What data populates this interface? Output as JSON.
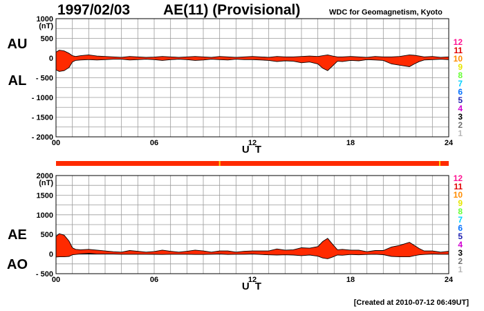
{
  "header": {
    "date": "1997/02/03",
    "title": "AE(11) (Provisional)",
    "source": "WDC for Geomagnetism, Kyoto"
  },
  "footer": {
    "created": "[Created at 2010-07-12 06:49UT]"
  },
  "colors": {
    "fill": "#ff2a00",
    "grid": "#9a9a9a",
    "status_bar": "#ff2a00",
    "status_marker": "#ffcc00"
  },
  "station_legend": [
    {
      "label": "12",
      "color": "#ff1493"
    },
    {
      "label": "11",
      "color": "#e00000"
    },
    {
      "label": "10",
      "color": "#ff8c00"
    },
    {
      "label": "9",
      "color": "#e6e600"
    },
    {
      "label": "8",
      "color": "#66ff33"
    },
    {
      "label": "7",
      "color": "#00d0ff"
    },
    {
      "label": "6",
      "color": "#0070ff"
    },
    {
      "label": "5",
      "color": "#2020b0"
    },
    {
      "label": "4",
      "color": "#d000d0"
    },
    {
      "label": "3",
      "color": "#000000"
    },
    {
      "label": "2",
      "color": "#707070"
    },
    {
      "label": "1",
      "color": "#b8b8b8"
    }
  ],
  "status_bar": {
    "markers_hour": [
      10.0,
      23.45
    ]
  },
  "chart_data": [
    {
      "type": "area",
      "id": "au-al",
      "labels_left": [
        "AU",
        "AL"
      ],
      "unit": "(nT)",
      "xlabel": "U T",
      "xlim": [
        0,
        24
      ],
      "ylim": [
        -2000,
        1000
      ],
      "xticks": [
        0,
        6,
        12,
        18,
        24
      ],
      "xtick_labels": [
        "00",
        "06",
        "12",
        "18",
        "24"
      ],
      "yticks": [
        1000,
        500,
        0,
        -500,
        -1000,
        -1500,
        -2000
      ],
      "ytick_labels": [
        "1000",
        "500",
        "0",
        "- 500",
        "- 1000",
        "- 1500",
        "- 2000"
      ],
      "grid": true,
      "x_hours": [
        0,
        0.2,
        0.5,
        0.8,
        1.0,
        1.2,
        1.5,
        2,
        2.5,
        3,
        3.5,
        4,
        4.5,
        5,
        5.5,
        6,
        6.5,
        7,
        7.5,
        8,
        8.5,
        9,
        9.5,
        10,
        10.5,
        11,
        11.5,
        12,
        12.5,
        13,
        13.5,
        14,
        14.5,
        15,
        15.5,
        16,
        16.3,
        16.6,
        16.9,
        17.2,
        17.5,
        18,
        18.5,
        19,
        19.5,
        20,
        20.5,
        21,
        21.3,
        21.6,
        21.9,
        22.2,
        22.5,
        23,
        23.5,
        24
      ],
      "series": [
        {
          "name": "AU",
          "values": [
            150,
            200,
            180,
            120,
            60,
            40,
            60,
            80,
            50,
            40,
            30,
            20,
            40,
            30,
            20,
            25,
            40,
            30,
            20,
            30,
            40,
            30,
            20,
            40,
            30,
            20,
            30,
            40,
            30,
            20,
            40,
            30,
            30,
            40,
            50,
            40,
            60,
            80,
            50,
            30,
            30,
            40,
            30,
            20,
            40,
            30,
            30,
            40,
            60,
            80,
            70,
            50,
            30,
            40,
            20,
            30
          ]
        },
        {
          "name": "AL",
          "values": [
            -300,
            -340,
            -320,
            -240,
            -100,
            -60,
            -50,
            -40,
            -50,
            -40,
            -30,
            -30,
            -50,
            -40,
            -30,
            -40,
            -60,
            -40,
            -30,
            -40,
            -60,
            -50,
            -30,
            -40,
            -50,
            -30,
            -40,
            -40,
            -50,
            -60,
            -90,
            -70,
            -80,
            -120,
            -100,
            -150,
            -260,
            -320,
            -200,
            -80,
            -90,
            -60,
            -70,
            -40,
            -50,
            -60,
            -150,
            -180,
            -200,
            -220,
            -150,
            -90,
            -50,
            -40,
            -30,
            -40
          ]
        }
      ]
    },
    {
      "type": "area",
      "id": "ae-ao",
      "labels_left": [
        "AE",
        "AO"
      ],
      "unit": "(nT)",
      "xlabel": "U T",
      "xlim": [
        0,
        24
      ],
      "ylim": [
        -500,
        2000
      ],
      "xticks": [
        0,
        6,
        12,
        18,
        24
      ],
      "xtick_labels": [
        "00",
        "06",
        "12",
        "18",
        "24"
      ],
      "yticks": [
        2000,
        1500,
        1000,
        500,
        0,
        -500
      ],
      "ytick_labels": [
        "2000",
        "1500",
        "1000",
        "500",
        "0",
        "- 500"
      ],
      "grid": true,
      "x_hours": [
        0,
        0.2,
        0.5,
        0.8,
        1.0,
        1.2,
        1.5,
        2,
        2.5,
        3,
        3.5,
        4,
        4.5,
        5,
        5.5,
        6,
        6.5,
        7,
        7.5,
        8,
        8.5,
        9,
        9.5,
        10,
        10.5,
        11,
        11.5,
        12,
        12.5,
        13,
        13.5,
        14,
        14.5,
        15,
        15.5,
        16,
        16.3,
        16.6,
        16.9,
        17.2,
        17.5,
        18,
        18.5,
        19,
        19.5,
        20,
        20.5,
        21,
        21.3,
        21.6,
        21.9,
        22.2,
        22.5,
        23,
        23.5,
        24
      ],
      "series": [
        {
          "name": "AE",
          "values": [
            450,
            520,
            480,
            330,
            160,
            120,
            110,
            120,
            100,
            80,
            60,
            50,
            90,
            70,
            50,
            65,
            100,
            70,
            50,
            70,
            100,
            80,
            50,
            80,
            80,
            50,
            70,
            80,
            80,
            80,
            130,
            100,
            110,
            160,
            150,
            190,
            320,
            400,
            250,
            110,
            120,
            100,
            100,
            60,
            90,
            90,
            180,
            220,
            260,
            300,
            220,
            140,
            80,
            80,
            50,
            70
          ]
        },
        {
          "name": "AO",
          "values": [
            -75,
            -70,
            -70,
            -60,
            -20,
            -10,
            5,
            20,
            0,
            0,
            0,
            -5,
            -5,
            -5,
            -5,
            -7,
            -10,
            -5,
            -5,
            -5,
            -10,
            -10,
            -5,
            0,
            -10,
            -5,
            -5,
            0,
            -10,
            -20,
            -25,
            -20,
            -25,
            -40,
            -25,
            -55,
            -100,
            -120,
            -75,
            -25,
            -30,
            -10,
            -20,
            -10,
            -5,
            -15,
            -60,
            -70,
            -70,
            -70,
            -40,
            -20,
            -10,
            0,
            -5,
            -5
          ]
        }
      ]
    }
  ]
}
